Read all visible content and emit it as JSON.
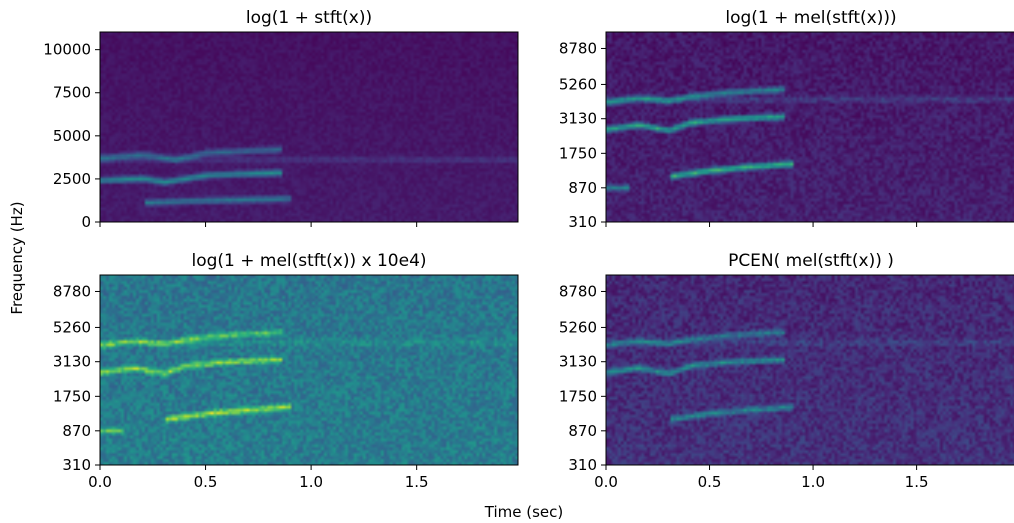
{
  "figure": {
    "shared_ylabel": "Frequency (Hz)",
    "shared_xlabel": "Time (sec)"
  },
  "colors": {
    "colormap": "viridis",
    "low": "#440154",
    "mid": "#21918c",
    "high": "#fde725"
  },
  "chart_data": [
    {
      "type": "heatmap",
      "title": "log(1 + stft(x))",
      "colormap": "viridis",
      "x_range": [
        0.0,
        1.98
      ],
      "x_ticks": [
        "0.0",
        "0.5",
        "1.0",
        "1.5"
      ],
      "x_tick_values": [
        0.0,
        0.5,
        1.0,
        1.5
      ],
      "x_tick_labels_shown": false,
      "y_scale": "linear",
      "y_range": [
        0,
        11025
      ],
      "y_ticks": [
        "0",
        "2500",
        "5000",
        "7500",
        "10000"
      ],
      "y_tick_values": [
        0,
        2500,
        5000,
        7500,
        10000
      ],
      "background_level": 0.05,
      "noise_level": 0.03,
      "features": [
        {
          "t": [
            0.0,
            0.2,
            0.35,
            0.5,
            0.85
          ],
          "f": [
            3800,
            4000,
            3700,
            4100,
            4300
          ],
          "intensity": 0.3
        },
        {
          "t": [
            0.0,
            0.2,
            0.3,
            0.5,
            0.85
          ],
          "f": [
            2500,
            2600,
            2400,
            2800,
            2950
          ],
          "intensity": 0.45
        },
        {
          "t": [
            0.2,
            0.4,
            0.6,
            0.9
          ],
          "f": [
            1200,
            1300,
            1350,
            1450
          ],
          "intensity": 0.35
        },
        {
          "t": [
            0.0,
            1.98
          ],
          "f": [
            3700,
            3700
          ],
          "intensity": 0.1
        }
      ]
    },
    {
      "type": "heatmap",
      "title": "log(1 + mel(stft(x)))",
      "colormap": "viridis",
      "x_range": [
        0.0,
        1.98
      ],
      "x_ticks": [
        "0.0",
        "0.5",
        "1.0",
        "1.5"
      ],
      "x_tick_values": [
        0.0,
        0.5,
        1.0,
        1.5
      ],
      "x_tick_labels_shown": false,
      "y_scale": "mel",
      "y_range": [
        310,
        11025
      ],
      "y_ticks": [
        "310",
        "870",
        "1750",
        "3130",
        "5260",
        "8780"
      ],
      "y_tick_values": [
        310,
        870,
        1750,
        3130,
        5260,
        8780
      ],
      "background_level": 0.07,
      "noise_level": 0.06,
      "features": [
        {
          "t": [
            0.0,
            0.15,
            0.3,
            0.4,
            0.6,
            0.85
          ],
          "f": [
            4100,
            4400,
            4200,
            4500,
            4800,
            5000
          ],
          "intensity": 0.4
        },
        {
          "t": [
            0.0,
            0.15,
            0.3,
            0.4,
            0.6,
            0.85
          ],
          "f": [
            2700,
            2900,
            2650,
            3000,
            3200,
            3300
          ],
          "intensity": 0.55
        },
        {
          "t": [
            0.3,
            0.5,
            0.7,
            0.9
          ],
          "f": [
            1150,
            1300,
            1400,
            1480
          ],
          "intensity": 0.6
        },
        {
          "t": [
            0.0,
            0.1
          ],
          "f": [
            900,
            900
          ],
          "intensity": 0.35
        },
        {
          "t": [
            0.0,
            1.98
          ],
          "f": [
            4300,
            4300
          ],
          "intensity": 0.12
        }
      ]
    },
    {
      "type": "heatmap",
      "title": "log(1 + mel(stft(x)) x 10e4)",
      "colormap": "viridis",
      "x_range": [
        0.0,
        1.98
      ],
      "x_ticks": [
        "0.0",
        "0.5",
        "1.0",
        "1.5"
      ],
      "x_tick_values": [
        0.0,
        0.5,
        1.0,
        1.5
      ],
      "x_tick_labels_shown": true,
      "y_scale": "mel",
      "y_range": [
        310,
        11025
      ],
      "y_ticks": [
        "310",
        "870",
        "1750",
        "3130",
        "5260",
        "8780"
      ],
      "y_tick_values": [
        310,
        870,
        1750,
        3130,
        5260,
        8780
      ],
      "background_level": 0.4,
      "noise_level": 0.1,
      "features": [
        {
          "t": [
            0.0,
            0.15,
            0.3,
            0.4,
            0.6,
            0.85
          ],
          "f": [
            4100,
            4400,
            4200,
            4500,
            4800,
            5000
          ],
          "intensity": 0.35
        },
        {
          "t": [
            0.0,
            0.15,
            0.3,
            0.4,
            0.6,
            0.85
          ],
          "f": [
            2700,
            2900,
            2650,
            3000,
            3200,
            3300
          ],
          "intensity": 0.45
        },
        {
          "t": [
            0.3,
            0.5,
            0.7,
            0.9
          ],
          "f": [
            1150,
            1300,
            1400,
            1480
          ],
          "intensity": 0.5
        },
        {
          "t": [
            0.0,
            0.1
          ],
          "f": [
            900,
            900
          ],
          "intensity": 0.35
        },
        {
          "t": [
            0.0,
            1.98
          ],
          "f": [
            4300,
            4300
          ],
          "intensity": 0.1
        }
      ]
    },
    {
      "type": "heatmap",
      "title": "PCEN( mel(stft(x)) )",
      "colormap": "viridis",
      "x_range": [
        0.0,
        1.98
      ],
      "x_ticks": [
        "0.0",
        "0.5",
        "1.0",
        "1.5"
      ],
      "x_tick_values": [
        0.0,
        0.5,
        1.0,
        1.5
      ],
      "x_tick_labels_shown": true,
      "y_scale": "mel",
      "y_range": [
        310,
        11025
      ],
      "y_ticks": [
        "310",
        "870",
        "1750",
        "3130",
        "5260",
        "8780"
      ],
      "y_tick_values": [
        310,
        870,
        1750,
        3130,
        5260,
        8780
      ],
      "background_level": 0.12,
      "noise_level": 0.08,
      "features": [
        {
          "t": [
            0.0,
            0.15,
            0.3,
            0.4,
            0.6,
            0.85
          ],
          "f": [
            4100,
            4400,
            4200,
            4500,
            4800,
            5000
          ],
          "intensity": 0.3
        },
        {
          "t": [
            0.0,
            0.15,
            0.3,
            0.4,
            0.6,
            0.85
          ],
          "f": [
            2700,
            2900,
            2650,
            3000,
            3200,
            3300
          ],
          "intensity": 0.4
        },
        {
          "t": [
            0.3,
            0.5,
            0.7,
            0.9
          ],
          "f": [
            1150,
            1300,
            1400,
            1480
          ],
          "intensity": 0.35
        },
        {
          "t": [
            0.0,
            1.98
          ],
          "f": [
            4300,
            4300
          ],
          "intensity": 0.08
        }
      ]
    }
  ]
}
